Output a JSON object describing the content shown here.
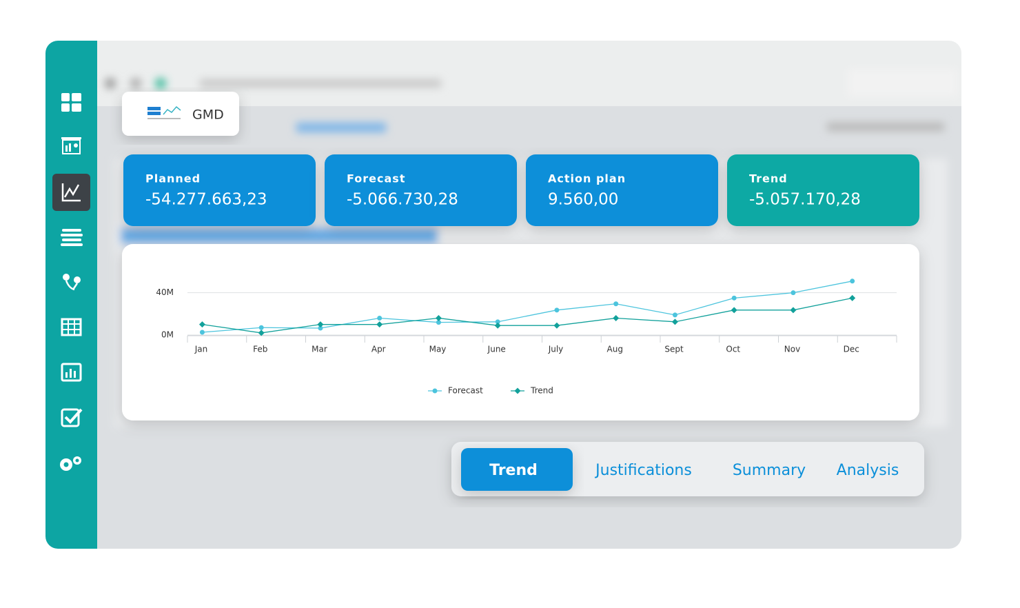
{
  "app": {
    "name": "GMD"
  },
  "kpis": [
    {
      "label": "Planned",
      "value": "-54.277.663,23",
      "color": "#0b8fd9"
    },
    {
      "label": "Forecast",
      "value": "-5.066.730,28",
      "color": "#0b8fd9"
    },
    {
      "label": "Action plan",
      "value": "9.560,00",
      "color": "#0b8fd9"
    },
    {
      "label": "Trend",
      "value": "-5.057.170,28",
      "color": "#0aa9a4"
    }
  ],
  "chart_data": {
    "type": "line",
    "categories": [
      "Jan",
      "Feb",
      "Mar",
      "Apr",
      "May",
      "June",
      "July",
      "Aug",
      "Sept",
      "Oct",
      "Nov",
      "Dec"
    ],
    "series": [
      {
        "name": "Forecast",
        "color": "#4cc4dd",
        "marker": "circle",
        "values": [
          2.6,
          7,
          6.5,
          16,
          12,
          12.5,
          23.6,
          29.5,
          19,
          35,
          40,
          51
        ]
      },
      {
        "name": "Trend",
        "color": "#12a19b",
        "marker": "diamond",
        "values": [
          10,
          2,
          10,
          10,
          16,
          9,
          9,
          16,
          12.5,
          23.6,
          23.6,
          35
        ]
      }
    ],
    "ylim": [
      0,
      60
    ],
    "yticks": [
      {
        "value": 0,
        "label": "0M"
      },
      {
        "value": 40,
        "label": "40M"
      }
    ],
    "grid": true,
    "legend": "bottom"
  },
  "tabs": [
    {
      "label": "Trend",
      "active": true
    },
    {
      "label": "Justifications",
      "active": false
    },
    {
      "label": "Summary",
      "active": false
    },
    {
      "label": "Analysis",
      "active": false
    }
  ]
}
